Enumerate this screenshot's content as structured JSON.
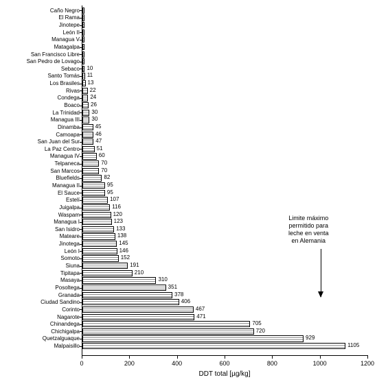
{
  "chart": {
    "type": "bar",
    "orientation": "horizontal",
    "background_color": "#ffffff",
    "bar_border_color": "#000000",
    "bar_fill_pattern": "horizontal-hatch",
    "bar_fill_base_color": "#ffffff",
    "bar_hatch_color": "#555555",
    "value_label_fontsize": 8,
    "y_label_fontsize": 8,
    "x": {
      "title": "DDT total [µg/kg]",
      "title_fontsize": 10,
      "min": 0,
      "max": 1200,
      "tick_step": 200,
      "ticks": [
        0,
        200,
        400,
        600,
        800,
        1000,
        1200
      ],
      "tick_label_fontsize": 9,
      "axis_color": "#000000"
    },
    "data": [
      {
        "label": "Caño Negro",
        "value": null
      },
      {
        "label": "El Rama",
        "value": null
      },
      {
        "label": "Jinotepe",
        "value": null
      },
      {
        "label": "León II",
        "value": null
      },
      {
        "label": "Managua V",
        "value": null
      },
      {
        "label": "Matagalpa",
        "value": null
      },
      {
        "label": "San Francisco Libre",
        "value": null
      },
      {
        "label": "San Pedro de Lovago",
        "value": null
      },
      {
        "label": "Sebaco",
        "value": 10
      },
      {
        "label": "Santo Tomás",
        "value": 11
      },
      {
        "label": "Los Brasiles",
        "value": 13
      },
      {
        "label": "Rivas",
        "value": 22
      },
      {
        "label": "Condega",
        "value": 24
      },
      {
        "label": "Boaco",
        "value": 26
      },
      {
        "label": "La Trinidad",
        "value": 30
      },
      {
        "label": "Managua III",
        "value": 30
      },
      {
        "label": "Dinamba",
        "value": 45
      },
      {
        "label": "Camoapa",
        "value": 46
      },
      {
        "label": "San Juan del Sur",
        "value": 47
      },
      {
        "label": "La Paz Centro",
        "value": 51
      },
      {
        "label": "Managua IV",
        "value": 60
      },
      {
        "label": "Telpaneca",
        "value": 70
      },
      {
        "label": "San Marcos",
        "value": 70
      },
      {
        "label": "Bluefields",
        "value": 82
      },
      {
        "label": "Managua II",
        "value": 95
      },
      {
        "label": "El Sauce",
        "value": 95
      },
      {
        "label": "Estelí",
        "value": 107
      },
      {
        "label": "Juigalpa",
        "value": 116
      },
      {
        "label": "Waspam",
        "value": 120
      },
      {
        "label": "Managua I",
        "value": 123
      },
      {
        "label": "San Isidro",
        "value": 133
      },
      {
        "label": "Mateare",
        "value": 138
      },
      {
        "label": "Jinotega",
        "value": 145
      },
      {
        "label": "León I",
        "value": 146
      },
      {
        "label": "Somoto",
        "value": 152
      },
      {
        "label": "Siuna",
        "value": 191
      },
      {
        "label": "Tipitapa",
        "value": 210
      },
      {
        "label": "Masaya",
        "value": 310
      },
      {
        "label": "Posoltega",
        "value": 351
      },
      {
        "label": "Granada",
        "value": 378
      },
      {
        "label": "Ciudad Sandino",
        "value": 406
      },
      {
        "label": "Corinto",
        "value": 467
      },
      {
        "label": "Nagarote",
        "value": 471
      },
      {
        "label": "Chinandega",
        "value": 705
      },
      {
        "label": "Chichigalpa",
        "value": 720
      },
      {
        "label": "Quetzalguaque",
        "value": 929
      },
      {
        "label": "Malpaisillo",
        "value": 1105
      }
    ],
    "annotation": {
      "text_lines": [
        "Limite máximo",
        "permitido para",
        "leche en venta",
        "en Alemania"
      ],
      "fontsize": 9,
      "arrow_x_value": 1000,
      "arrow_color": "#000000"
    }
  }
}
